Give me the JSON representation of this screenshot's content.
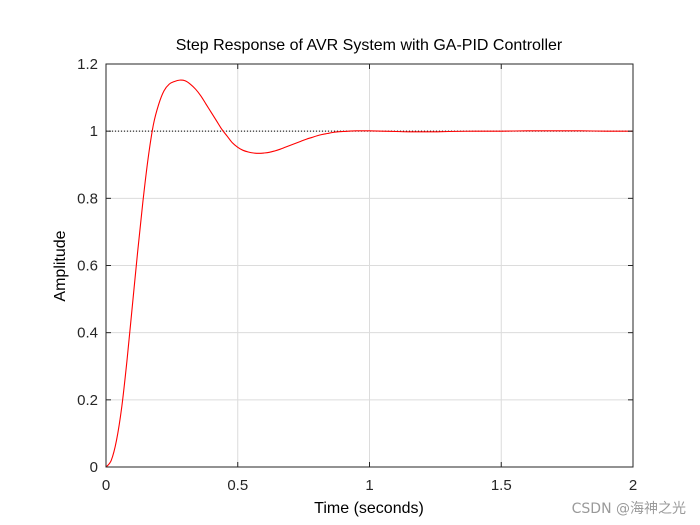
{
  "chart_data": {
    "type": "line",
    "title": "Step Response of AVR System with GA-PID Controller",
    "xlabel": "Time (seconds)",
    "ylabel": "Amplitude",
    "xlim": [
      0,
      2
    ],
    "ylim": [
      0,
      1.2
    ],
    "x_ticks": [
      "0",
      "0.5",
      "1",
      "1.5",
      "2"
    ],
    "y_ticks": [
      "0",
      "0.2",
      "0.4",
      "0.6",
      "0.8",
      "1",
      "1.2"
    ],
    "grid": true,
    "reference_line": {
      "y": 1,
      "style": "dotted"
    },
    "series": [
      {
        "color": "#ff0000",
        "x": [
          0,
          0.02,
          0.04,
          0.06,
          0.08,
          0.1,
          0.12,
          0.14,
          0.16,
          0.18,
          0.2,
          0.22,
          0.24,
          0.26,
          0.28,
          0.3,
          0.32,
          0.34,
          0.36,
          0.38,
          0.4,
          0.42,
          0.44,
          0.46,
          0.48,
          0.5,
          0.52,
          0.54,
          0.56,
          0.58,
          0.6,
          0.62,
          0.64,
          0.66,
          0.68,
          0.7,
          0.72,
          0.74,
          0.76,
          0.78,
          0.8,
          0.82,
          0.84,
          0.86,
          0.88,
          0.9,
          0.92,
          0.95,
          1.0,
          1.05,
          1.1,
          1.15,
          1.2,
          1.25,
          1.3,
          1.4,
          1.5,
          1.6,
          1.7,
          1.8,
          1.9,
          2.0
        ],
        "y": [
          0,
          0.02,
          0.08,
          0.18,
          0.32,
          0.48,
          0.64,
          0.79,
          0.92,
          1.02,
          1.08,
          1.12,
          1.14,
          1.148,
          1.152,
          1.15,
          1.14,
          1.125,
          1.105,
          1.08,
          1.055,
          1.03,
          1.005,
          0.985,
          0.965,
          0.952,
          0.943,
          0.938,
          0.935,
          0.934,
          0.935,
          0.937,
          0.941,
          0.946,
          0.952,
          0.958,
          0.964,
          0.97,
          0.976,
          0.981,
          0.986,
          0.99,
          0.993,
          0.996,
          0.998,
          0.999,
          1.0,
          1.001,
          1.001,
          1.0,
          0.999,
          0.998,
          0.998,
          0.998,
          0.999,
          1.0,
          1.0,
          1.001,
          1.001,
          1.001,
          1.0,
          1.0
        ]
      }
    ]
  },
  "watermark": "CSDN @海神之光"
}
